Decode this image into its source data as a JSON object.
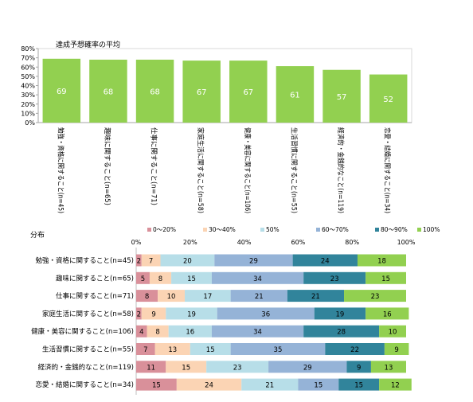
{
  "chart_data": [
    {
      "type": "bar",
      "title": "達成予想確率の平均",
      "ylim": [
        0,
        80
      ],
      "yticks": [
        "0%",
        "10%",
        "20%",
        "30%",
        "40%",
        "50%",
        "60%",
        "70%",
        "80%"
      ],
      "grid": false,
      "categories": [
        "勉強・資格に関すること(n=45)",
        "趣味に関すること(n=65)",
        "仕事に関すること(n=71)",
        "家庭生活に関すること(n=58)",
        "健康・美容に関すること(n=106)",
        "生活習慣に関すること(n=55)",
        "経済的・金銭的なこと(n=119)",
        "恋愛・結婚に関すること(n=34)"
      ],
      "values": [
        69,
        68,
        68,
        67,
        67,
        61,
        57,
        52
      ],
      "bar_color": "#92d050"
    },
    {
      "type": "bar",
      "orientation": "horizontal-stacked",
      "title": "分布",
      "xlim": [
        0,
        100
      ],
      "xticks": [
        "0%",
        "20%",
        "40%",
        "60%",
        "80%",
        "100%"
      ],
      "legend_position": "top",
      "categories": [
        "勉強・資格に関すること(n=45)",
        "趣味に関すること(n=65)",
        "仕事に関すること(n=71)",
        "家庭生活に関すること(n=58)",
        "健康・美容に関すること(n=106)",
        "生活習慣に関すること(n=55)",
        "経済的・金銭的なこと(n=119)",
        "恋愛・結婚に関すること(n=34)"
      ],
      "series": [
        {
          "name": "0～20%",
          "color": "#d9909a",
          "values": [
            2,
            5,
            8,
            2,
            4,
            7,
            11,
            15
          ]
        },
        {
          "name": "30～40%",
          "color": "#fbd4b4",
          "values": [
            7,
            8,
            10,
            9,
            8,
            13,
            15,
            24
          ]
        },
        {
          "name": "50%",
          "color": "#b7dee8",
          "values": [
            20,
            15,
            17,
            19,
            16,
            15,
            23,
            21
          ]
        },
        {
          "name": "60～70%",
          "color": "#95b3d7",
          "values": [
            29,
            34,
            21,
            36,
            34,
            35,
            29,
            15
          ]
        },
        {
          "name": "80～90%",
          "color": "#31849b",
          "values": [
            24,
            23,
            21,
            19,
            28,
            22,
            9,
            15
          ]
        },
        {
          "name": "100%",
          "color": "#92d050",
          "values": [
            18,
            15,
            23,
            16,
            10,
            9,
            13,
            12
          ]
        }
      ]
    }
  ]
}
